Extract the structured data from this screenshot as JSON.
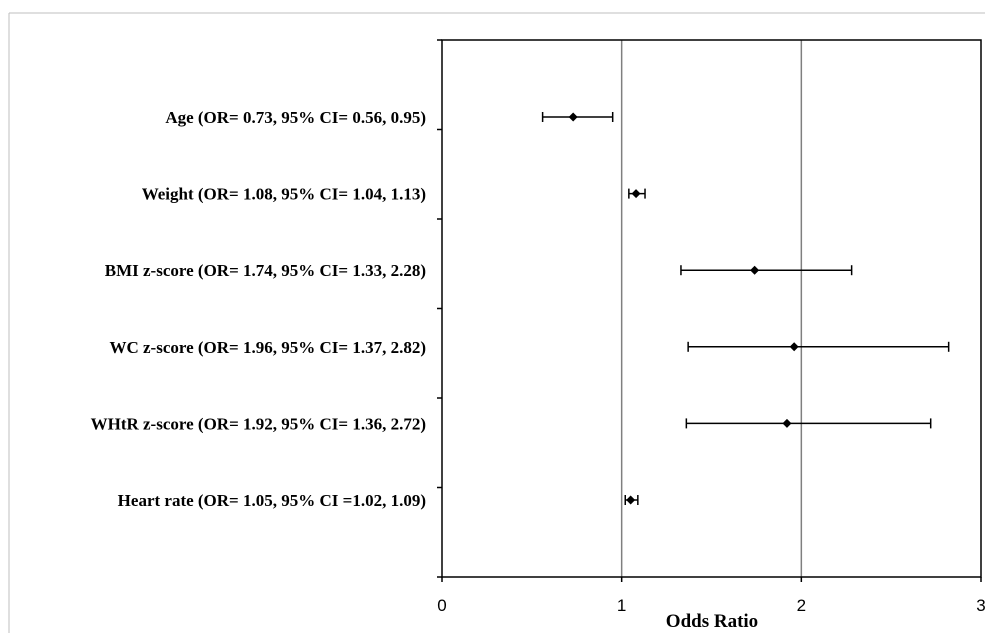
{
  "chart_data": {
    "type": "forest",
    "xlabel": "Odds Ratio",
    "xlim": [
      0,
      3
    ],
    "xticks": [
      0,
      1,
      2,
      3
    ],
    "x_tick_labels": [
      "0",
      "1",
      "2",
      "3"
    ],
    "vertical_gridlines": [
      1,
      2
    ],
    "series": [
      {
        "label": "Age (OR= 0.73, 95% CI= 0.56, 0.95)",
        "or": 0.73,
        "ci_low": 0.56,
        "ci_high": 0.95
      },
      {
        "label": "Weight (OR= 1.08, 95% CI= 1.04, 1.13)",
        "or": 1.08,
        "ci_low": 1.04,
        "ci_high": 1.13
      },
      {
        "label": "BMI z-score (OR= 1.74, 95% CI= 1.33, 2.28)",
        "or": 1.74,
        "ci_low": 1.33,
        "ci_high": 2.28
      },
      {
        "label": "WC z-score (OR= 1.96, 95% CI= 1.37, 2.82)",
        "or": 1.96,
        "ci_low": 1.37,
        "ci_high": 2.82
      },
      {
        "label": "WHtR z-score (OR= 1.92, 95% CI= 1.36, 2.72)",
        "or": 1.92,
        "ci_low": 1.36,
        "ci_high": 2.72
      },
      {
        "label": "Heart rate (OR= 1.05, 95% CI =1.02, 1.09)",
        "or": 1.05,
        "ci_low": 1.02,
        "ci_high": 1.09
      }
    ],
    "colors": {
      "marker": "#000000",
      "gridline": "#7f7f7f",
      "frame": "#000000",
      "outer_border": "#bfbfbf"
    }
  }
}
